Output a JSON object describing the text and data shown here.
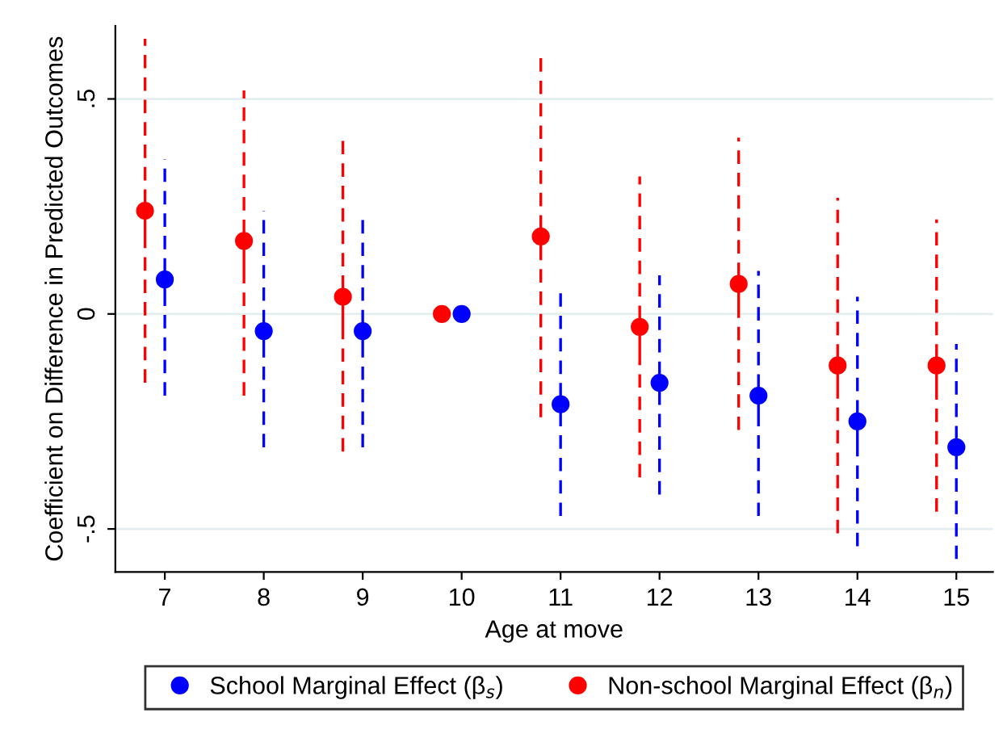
{
  "chart_data": {
    "type": "scatter",
    "xlabel": "Age at move",
    "ylabel": "Coefficient on Difference in Predicted Outcomes",
    "xlim": [
      6.5,
      15.37
    ],
    "xticks": [
      7,
      8,
      9,
      10,
      11,
      12,
      13,
      14,
      15
    ],
    "ylim": [
      -0.6,
      0.67
    ],
    "yticks": [
      {
        "value": 0.5,
        "label": ".5"
      },
      0,
      {
        "value": -0.5,
        "label": "-.5"
      }
    ],
    "grid": "y",
    "legend": "bottom",
    "marker": "circle",
    "line_style": "dashed",
    "series": [
      {
        "name": "School Marginal Effect (β$_{s}$)",
        "color": "#0000ff",
        "x": [
          7,
          8,
          9,
          10,
          11,
          12,
          13,
          14,
          15
        ],
        "values": [
          0.08,
          -0.04,
          -0.04,
          0,
          -0.21,
          -0.16,
          -0.19,
          -0.25,
          -0.31
        ],
        "errors": [
          [
            -0.19,
            0.36
          ],
          [
            -0.31,
            0.24
          ],
          [
            -0.31,
            0.23
          ],
          null,
          [
            -0.47,
            0.05
          ],
          [
            -0.42,
            0.09
          ],
          [
            -0.47,
            0.1
          ],
          [
            -0.54,
            0.04
          ],
          [
            -0.57,
            -0.07
          ]
        ]
      },
      {
        "name": "Non-school Marginal Effect (β$_{n}$)",
        "color": "#ff0000",
        "x": [
          6.8,
          7.8,
          8.8,
          9.8,
          10.8,
          11.8,
          12.8,
          13.8,
          14.8
        ],
        "values": [
          0.24,
          0.17,
          0.04,
          0,
          0.18,
          -0.03,
          0.07,
          -0.12,
          -0.12
        ],
        "errors": [
          [
            -0.16,
            0.64
          ],
          [
            -0.19,
            0.52
          ],
          [
            -0.32,
            0.41
          ],
          null,
          [
            -0.24,
            0.6
          ],
          [
            -0.38,
            0.32
          ],
          [
            -0.27,
            0.41
          ],
          [
            -0.51,
            0.27
          ],
          [
            -0.46,
            0.22
          ]
        ]
      }
    ]
  }
}
